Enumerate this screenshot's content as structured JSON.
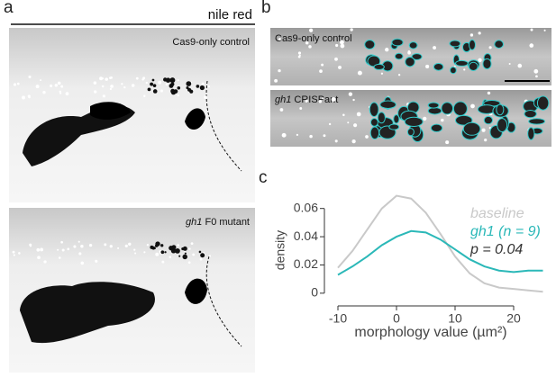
{
  "panels": {
    "a": {
      "label": "a",
      "stain": "nile red",
      "images": [
        {
          "label": "Cas9-only control"
        },
        {
          "gene": "gh1",
          "label": "F0 mutant"
        }
      ]
    },
    "b": {
      "label": "b",
      "images": [
        {
          "label": "Cas9-only control"
        },
        {
          "gene": "gh1",
          "label": "CRISPant"
        }
      ]
    },
    "c": {
      "label": "c"
    }
  },
  "chart_data": {
    "type": "line",
    "x_label": "morphology value (µm²)",
    "y_label": "density",
    "x": [
      -10,
      -7.5,
      -5,
      -2.5,
      0,
      2.5,
      5,
      7.5,
      10,
      12.5,
      15,
      17.5,
      20,
      22.5,
      25
    ],
    "series": [
      {
        "name": "baseline",
        "color": "#c9c9c9",
        "values": [
          0.018,
          0.03,
          0.045,
          0.06,
          0.069,
          0.067,
          0.057,
          0.042,
          0.026,
          0.014,
          0.007,
          0.004,
          0.003,
          0.002,
          0.001
        ]
      },
      {
        "name": "gh1 (n = 9)",
        "color": "#2bb8b8",
        "values": [
          0.013,
          0.019,
          0.026,
          0.034,
          0.04,
          0.044,
          0.043,
          0.038,
          0.031,
          0.024,
          0.019,
          0.016,
          0.015,
          0.016,
          0.016
        ]
      }
    ],
    "annotations": [
      "p = 0.04"
    ],
    "xlim": [
      -11,
      26
    ],
    "xticks": [
      -10,
      0,
      10,
      20
    ],
    "ylim": [
      -0.002,
      0.07
    ],
    "yticks": [
      0,
      0.02,
      0.04,
      0.06
    ]
  }
}
